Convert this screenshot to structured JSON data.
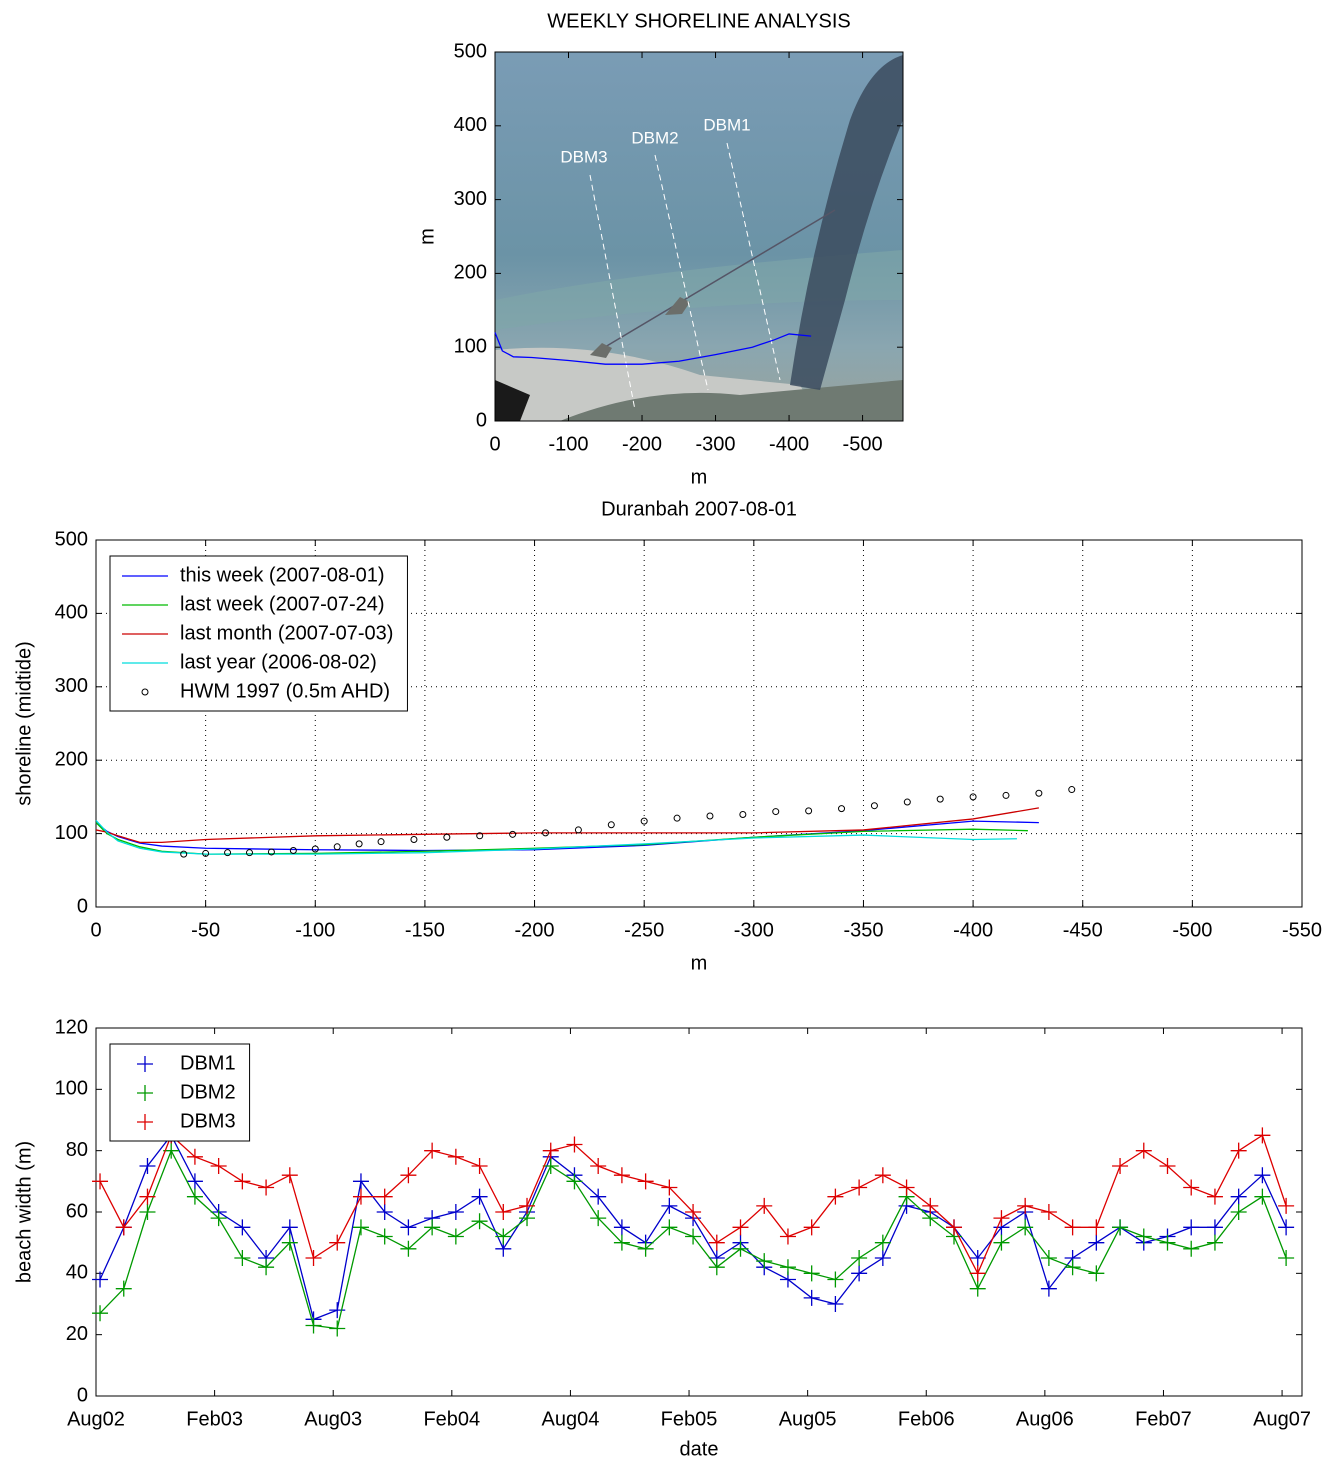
{
  "chart_data": [
    {
      "type": "line",
      "title": "WEEKLY SHORELINE ANALYSIS",
      "xlabel": "m",
      "ylabel": "m",
      "xlim": [
        0,
        -555
      ],
      "ylim": [
        0,
        500
      ],
      "xticks": [
        0,
        -100,
        -200,
        -300,
        -400,
        -500
      ],
      "yticks": [
        0,
        100,
        200,
        300,
        400,
        500
      ],
      "grid": false,
      "annotations": [
        "DBM1",
        "DBM2",
        "DBM3"
      ],
      "series": [
        {
          "color": "#0000ff",
          "line": true,
          "x": [
            0,
            -10,
            -25,
            -50,
            -100,
            -150,
            -200,
            -250,
            -300,
            -350,
            -380,
            -400,
            -430
          ],
          "values": [
            120,
            95,
            87,
            86,
            82,
            77,
            77,
            81,
            90,
            100,
            110,
            118,
            115
          ]
        }
      ]
    },
    {
      "type": "line",
      "title": "Duranbah  2007-08-01",
      "xlabel": "m",
      "ylabel": "shoreline (midtide)",
      "xlim": [
        0,
        -550
      ],
      "ylim": [
        0,
        500
      ],
      "xticks": [
        0,
        -50,
        -100,
        -150,
        -200,
        -250,
        -300,
        -350,
        -400,
        -450,
        -500,
        -550
      ],
      "yticks": [
        0,
        100,
        200,
        300,
        400,
        500
      ],
      "grid": true,
      "legend": "upper left",
      "series": [
        {
          "name": "this week (2007-08-01)",
          "color": "#0000ff",
          "line": true,
          "x": [
            0,
            -5,
            -10,
            -20,
            -30,
            -50,
            -100,
            -150,
            -200,
            -250,
            -300,
            -350,
            -400,
            -430
          ],
          "values": [
            115,
            103,
            96,
            87,
            83,
            80,
            78,
            77,
            78,
            84,
            95,
            104,
            117,
            115
          ]
        },
        {
          "name": "last week (2007-07-24)",
          "color": "#00bb00",
          "line": true,
          "x": [
            0,
            -5,
            -10,
            -20,
            -30,
            -50,
            -100,
            -150,
            -200,
            -250,
            -300,
            -350,
            -400,
            -425
          ],
          "values": [
            115,
            100,
            92,
            82,
            76,
            72,
            73,
            76,
            80,
            85,
            95,
            103,
            106,
            104
          ]
        },
        {
          "name": "last month (2007-07-03)",
          "color": "#cc0000",
          "line": true,
          "x": [
            0,
            -5,
            -10,
            -20,
            -30,
            -50,
            -100,
            -150,
            -200,
            -250,
            -300,
            -350,
            -400,
            -430
          ],
          "values": [
            105,
            102,
            97,
            88,
            88,
            92,
            97,
            99,
            101,
            101,
            101,
            105,
            120,
            135
          ]
        },
        {
          "name": "last year (2006-08-02)",
          "color": "#00dddd",
          "line": true,
          "x": [
            0,
            -5,
            -10,
            -20,
            -30,
            -50,
            -100,
            -150,
            -200,
            -250,
            -300,
            -350,
            -400,
            -420
          ],
          "values": [
            118,
            102,
            90,
            80,
            75,
            72,
            72,
            74,
            79,
            86,
            94,
            98,
            92,
            93
          ]
        },
        {
          "name": "HWM 1997 (0.5m AHD)",
          "color": "#000000",
          "marker": "o",
          "x": [
            -40,
            -50,
            -60,
            -70,
            -80,
            -90,
            -100,
            -110,
            -120,
            -130,
            -145,
            -160,
            -175,
            -190,
            -205,
            -220,
            -235,
            -250,
            -265,
            -280,
            -295,
            -310,
            -325,
            -340,
            -355,
            -370,
            -385,
            -400,
            -415,
            -430,
            -445
          ],
          "values": [
            72,
            73,
            74,
            74,
            75,
            77,
            79,
            82,
            86,
            89,
            92,
            95,
            97,
            99,
            101,
            105,
            112,
            117,
            121,
            124,
            126,
            130,
            131,
            134,
            138,
            143,
            147,
            150,
            152,
            155,
            160
          ]
        }
      ]
    },
    {
      "type": "scatter",
      "xlabel": "date",
      "ylabel": "beach width (m)",
      "xlim": [
        2002.583,
        2007.667
      ],
      "ylim": [
        0,
        120
      ],
      "xticks": [
        {
          "value": 2002.583,
          "label": "Aug02"
        },
        {
          "value": 2003.083,
          "label": "Feb03"
        },
        {
          "value": 2003.583,
          "label": "Aug03"
        },
        {
          "value": 2004.083,
          "label": "Feb04"
        },
        {
          "value": 2004.583,
          "label": "Aug04"
        },
        {
          "value": 2005.083,
          "label": "Feb05"
        },
        {
          "value": 2005.583,
          "label": "Aug05"
        },
        {
          "value": 2006.083,
          "label": "Feb06"
        },
        {
          "value": 2006.583,
          "label": "Aug06"
        },
        {
          "value": 2007.083,
          "label": "Feb07"
        },
        {
          "value": 2007.583,
          "label": "Aug07"
        }
      ],
      "yticks": [
        0,
        20,
        40,
        60,
        80,
        100,
        120
      ],
      "grid": false,
      "legend": "upper left",
      "x": [
        2002.6,
        2002.7,
        2002.8,
        2002.9,
        2003.0,
        2003.1,
        2003.2,
        2003.3,
        2003.4,
        2003.5,
        2003.6,
        2003.7,
        2003.8,
        2003.9,
        2004.0,
        2004.1,
        2004.2,
        2004.3,
        2004.4,
        2004.5,
        2004.6,
        2004.7,
        2004.8,
        2004.9,
        2005.0,
        2005.1,
        2005.2,
        2005.3,
        2005.4,
        2005.5,
        2005.6,
        2005.7,
        2005.8,
        2005.9,
        2006.0,
        2006.1,
        2006.2,
        2006.3,
        2006.4,
        2006.5,
        2006.6,
        2006.7,
        2006.8,
        2006.9,
        2007.0,
        2007.1,
        2007.2,
        2007.3,
        2007.4,
        2007.5,
        2007.6
      ],
      "series": [
        {
          "name": "DBM1",
          "color": "#0000cc",
          "marker": "+",
          "line": true,
          "values": [
            38,
            55,
            75,
            85,
            70,
            60,
            55,
            45,
            55,
            25,
            28,
            70,
            60,
            55,
            58,
            60,
            65,
            48,
            60,
            78,
            72,
            65,
            55,
            50,
            62,
            58,
            45,
            50,
            42,
            38,
            32,
            30,
            40,
            45,
            62,
            60,
            55,
            45,
            55,
            60,
            35,
            45,
            50,
            55,
            50,
            52,
            55,
            55,
            65,
            72,
            55
          ]
        },
        {
          "name": "DBM2",
          "color": "#009900",
          "marker": "+",
          "line": true,
          "values": [
            27,
            35,
            60,
            80,
            65,
            58,
            45,
            42,
            50,
            23,
            22,
            55,
            52,
            48,
            55,
            52,
            57,
            52,
            58,
            75,
            70,
            58,
            50,
            48,
            55,
            52,
            42,
            48,
            44,
            42,
            40,
            38,
            45,
            50,
            65,
            58,
            52,
            35,
            50,
            55,
            45,
            42,
            40,
            55,
            52,
            50,
            48,
            50,
            60,
            65,
            45
          ]
        },
        {
          "name": "DBM3",
          "color": "#dd0000",
          "marker": "+",
          "line": true,
          "values": [
            70,
            55,
            65,
            85,
            78,
            75,
            70,
            68,
            72,
            45,
            50,
            65,
            65,
            72,
            80,
            78,
            75,
            60,
            62,
            80,
            82,
            75,
            72,
            70,
            68,
            60,
            50,
            55,
            62,
            52,
            55,
            65,
            68,
            72,
            68,
            62,
            55,
            40,
            58,
            62,
            60,
            55,
            55,
            75,
            80,
            75,
            68,
            65,
            80,
            85,
            62
          ]
        }
      ]
    }
  ]
}
